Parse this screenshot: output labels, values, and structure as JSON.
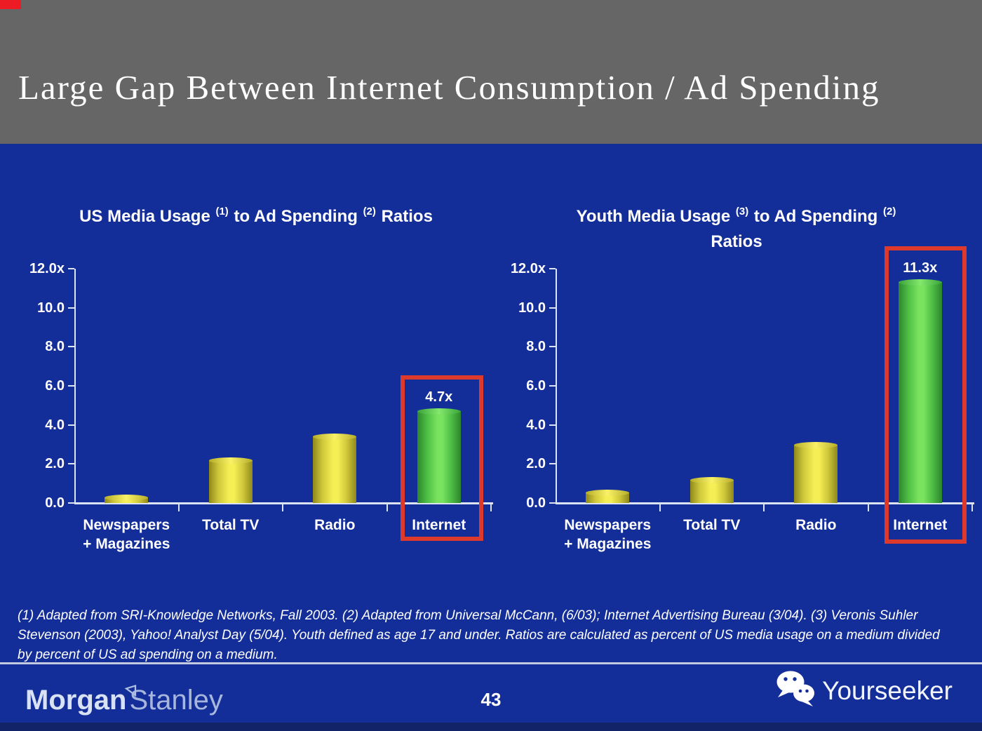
{
  "slide": {
    "title": "Large Gap Between Internet Consumption / Ad Spending",
    "page_number": "43",
    "footnote": "(1) Adapted from SRI-Knowledge Networks, Fall 2003.  (2) Adapted from Universal McCann, (6/03); Internet Advertising Bureau (3/04). (3) Veronis Suhler\nStevenson (2003), Yahoo! Analyst Day (5/04).  Youth defined as age 17 and under.  Ratios are calculated as percent of US media usage on a medium divided\nby percent of US ad spending on a medium."
  },
  "branding": {
    "morgan": "Morgan",
    "stanley": "Stanley",
    "flag_icon": "morgan-stanley-flag-icon",
    "watermark": "Yourseeker",
    "watermark_icon": "wechat-icon"
  },
  "colors": {
    "header_gray": "#666667",
    "background_blue": "#142E99",
    "footer_strip_blue": "#122368",
    "bar_yellow": "#F2EA4E",
    "bar_green": "#66D955",
    "highlight_red": "#DE3A2C",
    "text_white": "#FFFFFF"
  },
  "chart_data": [
    {
      "type": "bar",
      "title_parts": {
        "pre": "US Media Usage ",
        "sup1": "(1)",
        "mid": " to Ad Spending ",
        "sup2": "(2)",
        "post": " Ratios"
      },
      "categories": [
        [
          "Newspapers",
          "+ Magazines"
        ],
        [
          "Total TV"
        ],
        [
          "Radio"
        ],
        [
          "Internet"
        ]
      ],
      "values": [
        0.3,
        2.2,
        3.4,
        4.7
      ],
      "bar_colors": [
        "yellow",
        "yellow",
        "yellow",
        "green"
      ],
      "value_labels": [
        "",
        "",
        "",
        "4.7x"
      ],
      "yticks": [
        "12.0x",
        "10.0",
        "8.0",
        "6.0",
        "4.0",
        "2.0",
        "0.0"
      ],
      "ylim": [
        0,
        12
      ],
      "grid": false,
      "highlighted_category": "Internet"
    },
    {
      "type": "bar",
      "title_parts": {
        "pre": "Youth Media Usage ",
        "sup1": "(3)",
        "mid": " to Ad Spending ",
        "sup2": "(2)",
        "post": "",
        "line2": "Ratios"
      },
      "categories": [
        [
          "Newspapers",
          "+ Magazines"
        ],
        [
          "Total TV"
        ],
        [
          "Radio"
        ],
        [
          "Internet"
        ]
      ],
      "values": [
        0.55,
        1.2,
        3.0,
        11.3
      ],
      "bar_colors": [
        "yellow",
        "yellow",
        "yellow",
        "green"
      ],
      "value_labels": [
        "",
        "",
        "",
        "11.3x"
      ],
      "yticks": [
        "12.0x",
        "10.0",
        "8.0",
        "6.0",
        "4.0",
        "2.0",
        "0.0"
      ],
      "ylim": [
        0,
        12
      ],
      "grid": false,
      "highlighted_category": "Internet"
    }
  ]
}
